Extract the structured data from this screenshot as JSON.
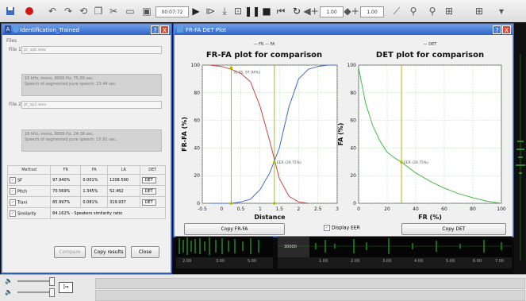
{
  "toolbar": {
    "time_box": "00:07:72",
    "speed1": "1.00",
    "speed2": "1.00"
  },
  "id_window": {
    "title": "Identification_Trained",
    "help": "?",
    "close": "X",
    "files_label": "Files",
    "file1_label": "File 1",
    "file1_value": "pt_spk.wav",
    "file1_info": [
      "16 kHz, mono, 8000 Hz, 75.00 sec.",
      "Speech of segmented pure speech: 23.44 sec."
    ],
    "file2_label": "File 2",
    "file2_value": "pt_sp2.wav",
    "file2_info": [
      "16 kHz, mono, 8000 Hz, 24.38 sec.",
      "Speech of segmented pure speech: 15.91 sec."
    ],
    "table_headers": [
      "Method",
      "FR",
      "FA",
      "LR",
      "DET"
    ],
    "rows": [
      {
        "method": "SF",
        "fr": "97.940%",
        "fa": "0.001%",
        "lr": "1208.590",
        "det": "DET"
      },
      {
        "method": "Pitch",
        "fr": "70.569%",
        "fa": "1.345%",
        "lr": "52.462",
        "det": "DET"
      },
      {
        "method": "Trani",
        "fr": "85.997%",
        "fa": "0.081%",
        "lr": "319.937",
        "det": "DET"
      }
    ],
    "similarity_label": "Similarity",
    "similarity_value": "84.162% - Speakers similarity ratio",
    "compare_button": "Compare",
    "copy_results_button": "Copy results",
    "close_button": "Close"
  },
  "plot_window": {
    "title": "FR-FA DET Plot",
    "help": "?",
    "close": "X",
    "display_eer_label": "Display EER",
    "copy_frfa_button": "Copy FR-FA",
    "copy_det_button": "Copy DET"
  },
  "chart_data": [
    {
      "type": "line",
      "title": "FR-FA plot for comparison",
      "legend": "— FR  — FA",
      "xlabel": "Distance",
      "ylabel": "FR-FA (%)",
      "xlim": [
        -0.5,
        3
      ],
      "ylim": [
        0,
        100
      ],
      "xticks": [
        "-0.5",
        "0",
        "0.5",
        "1",
        "1.5",
        "2",
        "2.5",
        "3"
      ],
      "yticks": [
        "0",
        "20",
        "40",
        "60",
        "80",
        "100"
      ],
      "grid": true,
      "series": [
        {
          "name": "FR",
          "color": "#cc4444",
          "x": [
            -0.3,
            0,
            0.25,
            0.5,
            0.75,
            1.0,
            1.25,
            1.5,
            1.75,
            2.0,
            2.25
          ],
          "y": [
            100,
            99,
            97,
            94,
            88,
            70,
            45,
            18,
            5,
            1,
            0
          ]
        },
        {
          "name": "FA",
          "color": "#4466cc",
          "x": [
            -0.3,
            0.25,
            0.5,
            0.75,
            1.0,
            1.25,
            1.5,
            1.75,
            2.0,
            2.25,
            2.5,
            2.75,
            3.0
          ],
          "y": [
            0,
            0,
            1,
            3,
            10,
            22,
            40,
            70,
            90,
            97,
            99,
            100,
            100
          ]
        }
      ],
      "annotations": [
        "EER (29.75%)",
        "(0.25, 97.94%)"
      ],
      "markers": {
        "x": [
          0.25,
          1.37
        ],
        "color": "#b8b800"
      }
    },
    {
      "type": "line",
      "title": "DET plot for comparison",
      "legend": "— DET",
      "xlabel": "FR (%)",
      "ylabel": "FA (%)",
      "xlim": [
        0,
        100
      ],
      "ylim": [
        0,
        100
      ],
      "xticks": [
        "0",
        "20",
        "40",
        "60",
        "80",
        "100"
      ],
      "yticks": [
        "0",
        "20",
        "40",
        "60",
        "80",
        "100"
      ],
      "grid": true,
      "series": [
        {
          "name": "DET",
          "color": "#44bb44",
          "x": [
            0,
            5,
            10,
            15,
            20,
            25,
            30,
            40,
            50,
            60,
            70,
            80,
            90,
            100
          ],
          "y": [
            98,
            72,
            56,
            45,
            37,
            33,
            29.75,
            22,
            16,
            11,
            7,
            4,
            1.5,
            0
          ]
        }
      ],
      "annotations": [
        "EER (29.75%)"
      ],
      "markers": {
        "x": [
          30
        ],
        "color": "#b8b800"
      }
    }
  ],
  "waveform": {
    "time_ticks1": [
      "2.00",
      "3.00",
      "5.00"
    ],
    "time_ticks2": [
      "1.00",
      "2.00",
      "3.00",
      "4.00",
      "5.00",
      "6.00",
      "7.00"
    ],
    "amp_label": "30000"
  },
  "colors": {
    "titlebar": "#2f63c8",
    "accent": "#6a8cc8"
  }
}
